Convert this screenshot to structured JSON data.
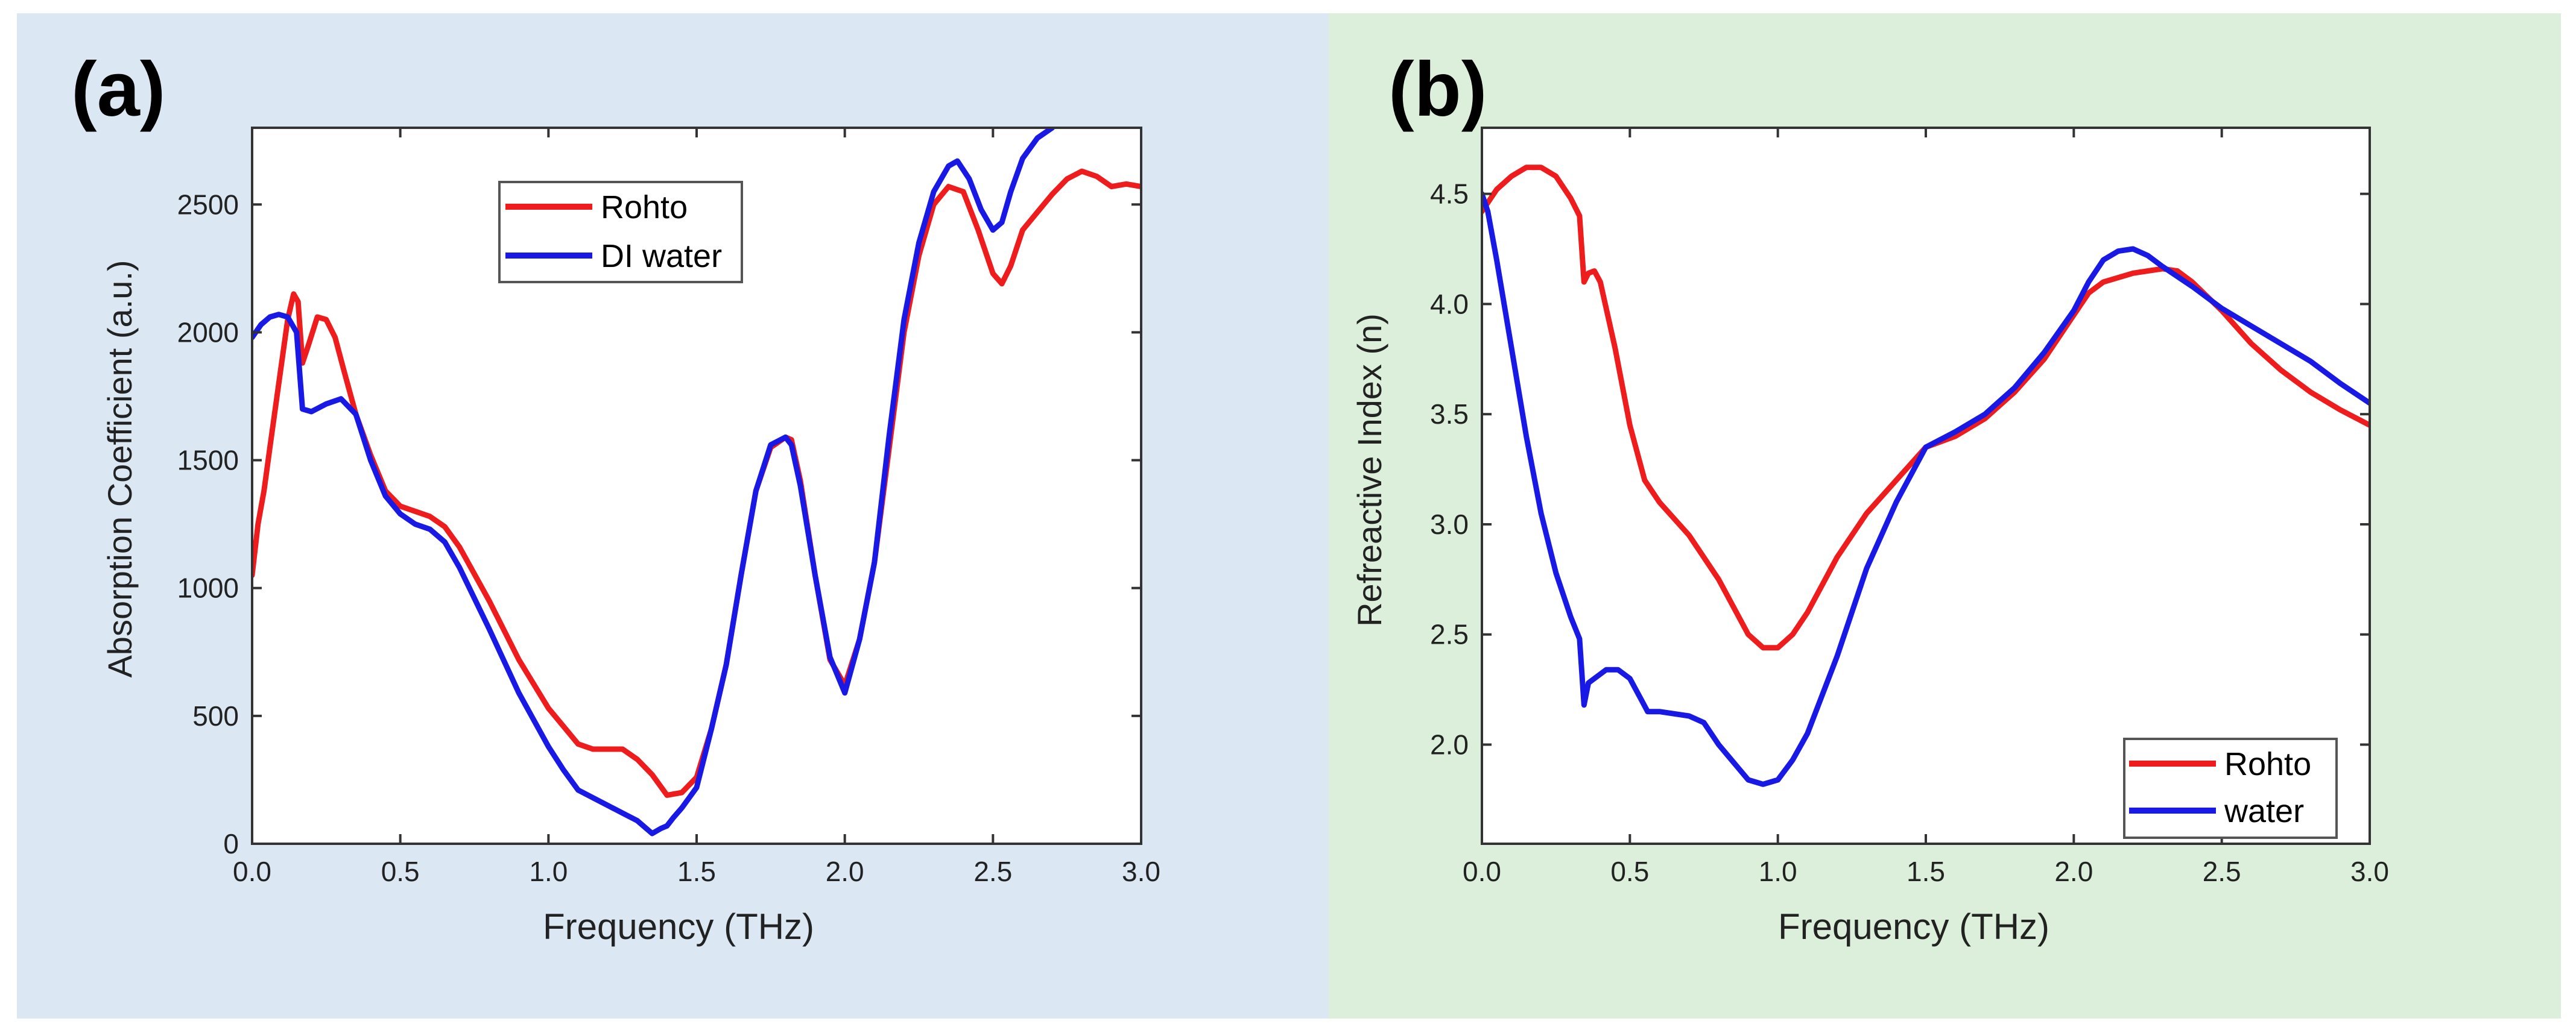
{
  "figure": {
    "panel_colors": [
      "#dbe8f4",
      "#dcefdb"
    ]
  },
  "chart_data": [
    {
      "type": "line",
      "panel_label": "(a)",
      "xlabel": "Frequency (THz)",
      "ylabel": "Absorption Coefficient (a.u.)",
      "xlim": [
        0.0,
        3.0
      ],
      "ylim": [
        0,
        2800
      ],
      "xticks": [
        0.0,
        0.5,
        1.0,
        1.5,
        2.0,
        2.5,
        3.0
      ],
      "xtick_labels": [
        "0.0",
        "0.5",
        "1.0",
        "1.5",
        "2.0",
        "2.5",
        "3.0"
      ],
      "yticks": [
        0,
        500,
        1000,
        1500,
        2000,
        2500
      ],
      "ytick_labels": [
        "0",
        "500",
        "1000",
        "1500",
        "2000",
        "2500"
      ],
      "grid": false,
      "legend_position": "top-center",
      "series": [
        {
          "name": "Rohto",
          "color": "#ee1c1c",
          "x": [
            0.0,
            0.02,
            0.04,
            0.06,
            0.09,
            0.12,
            0.14,
            0.155,
            0.17,
            0.19,
            0.22,
            0.25,
            0.28,
            0.31,
            0.35,
            0.4,
            0.45,
            0.5,
            0.55,
            0.6,
            0.65,
            0.7,
            0.8,
            0.9,
            1.0,
            1.05,
            1.1,
            1.15,
            1.2,
            1.25,
            1.3,
            1.35,
            1.4,
            1.45,
            1.5,
            1.55,
            1.6,
            1.65,
            1.7,
            1.75,
            1.8,
            1.82,
            1.85,
            1.9,
            1.95,
            2.0,
            2.05,
            2.1,
            2.15,
            2.2,
            2.25,
            2.3,
            2.35,
            2.4,
            2.45,
            2.5,
            2.53,
            2.56,
            2.6,
            2.65,
            2.7,
            2.75,
            2.8,
            2.85,
            2.9,
            2.95,
            3.0
          ],
          "y": [
            1050,
            1250,
            1380,
            1550,
            1800,
            2050,
            2150,
            2120,
            1880,
            1950,
            2060,
            2050,
            1980,
            1850,
            1680,
            1520,
            1380,
            1320,
            1300,
            1280,
            1240,
            1160,
            950,
            720,
            530,
            460,
            390,
            370,
            370,
            370,
            330,
            270,
            190,
            200,
            260,
            450,
            700,
            1050,
            1380,
            1550,
            1590,
            1580,
            1420,
            1050,
            720,
            620,
            800,
            1100,
            1550,
            2000,
            2300,
            2500,
            2570,
            2550,
            2400,
            2230,
            2190,
            2260,
            2400,
            2470,
            2540,
            2600,
            2630,
            2610,
            2570,
            2580,
            2570
          ]
        },
        {
          "name": "DI water",
          "color": "#1919e6",
          "x": [
            0.0,
            0.03,
            0.06,
            0.09,
            0.12,
            0.15,
            0.17,
            0.2,
            0.25,
            0.3,
            0.35,
            0.4,
            0.45,
            0.5,
            0.55,
            0.6,
            0.65,
            0.7,
            0.8,
            0.9,
            1.0,
            1.05,
            1.1,
            1.15,
            1.2,
            1.25,
            1.3,
            1.35,
            1.38,
            1.4,
            1.42,
            1.45,
            1.5,
            1.55,
            1.6,
            1.65,
            1.7,
            1.75,
            1.8,
            1.82,
            1.85,
            1.9,
            1.95,
            2.0,
            2.05,
            2.1,
            2.15,
            2.2,
            2.25,
            2.3,
            2.35,
            2.38,
            2.42,
            2.46,
            2.5,
            2.53,
            2.56,
            2.6,
            2.65,
            2.7
          ],
          "y": [
            1980,
            2030,
            2060,
            2070,
            2060,
            2000,
            1700,
            1690,
            1720,
            1740,
            1680,
            1500,
            1360,
            1290,
            1250,
            1230,
            1180,
            1080,
            840,
            590,
            380,
            290,
            210,
            180,
            150,
            120,
            90,
            40,
            60,
            70,
            100,
            140,
            220,
            450,
            700,
            1050,
            1380,
            1560,
            1590,
            1560,
            1400,
            1050,
            730,
            590,
            800,
            1100,
            1600,
            2050,
            2350,
            2550,
            2650,
            2670,
            2600,
            2480,
            2400,
            2430,
            2550,
            2680,
            2760,
            2800
          ]
        }
      ]
    },
    {
      "type": "line",
      "panel_label": "(b)",
      "xlabel": "Frequency (THz)",
      "ylabel": "Refreactive Index (n)",
      "xlim": [
        0.0,
        3.0
      ],
      "ylim": [
        1.55,
        4.8
      ],
      "xticks": [
        0.0,
        0.5,
        1.0,
        1.5,
        2.0,
        2.5,
        3.0
      ],
      "xtick_labels": [
        "0.0",
        "0.5",
        "1.0",
        "1.5",
        "2.0",
        "2.5",
        "3.0"
      ],
      "yticks": [
        2.0,
        2.5,
        3.0,
        3.5,
        4.0,
        4.5
      ],
      "ytick_labels": [
        "2.0",
        "2.5",
        "3.0",
        "3.5",
        "4.0",
        "4.5"
      ],
      "grid": false,
      "legend_position": "bottom-right",
      "series": [
        {
          "name": "Rohto",
          "color": "#ee1c1c",
          "x": [
            0.0,
            0.05,
            0.1,
            0.15,
            0.2,
            0.25,
            0.3,
            0.33,
            0.345,
            0.36,
            0.38,
            0.4,
            0.45,
            0.5,
            0.55,
            0.6,
            0.7,
            0.8,
            0.9,
            0.95,
            1.0,
            1.05,
            1.1,
            1.2,
            1.3,
            1.4,
            1.5,
            1.6,
            1.7,
            1.8,
            1.9,
            2.0,
            2.05,
            2.1,
            2.2,
            2.3,
            2.35,
            2.4,
            2.5,
            2.6,
            2.7,
            2.8,
            2.9,
            3.0
          ],
          "y": [
            4.42,
            4.52,
            4.58,
            4.62,
            4.62,
            4.58,
            4.48,
            4.4,
            4.1,
            4.14,
            4.15,
            4.1,
            3.8,
            3.45,
            3.2,
            3.1,
            2.95,
            2.75,
            2.5,
            2.44,
            2.44,
            2.5,
            2.6,
            2.85,
            3.05,
            3.2,
            3.35,
            3.4,
            3.48,
            3.6,
            3.75,
            3.95,
            4.05,
            4.1,
            4.14,
            4.16,
            4.15,
            4.1,
            3.97,
            3.82,
            3.7,
            3.6,
            3.52,
            3.45
          ]
        },
        {
          "name": "water",
          "color": "#1919e6",
          "x": [
            0.0,
            0.02,
            0.05,
            0.1,
            0.15,
            0.2,
            0.25,
            0.3,
            0.33,
            0.345,
            0.36,
            0.38,
            0.42,
            0.46,
            0.5,
            0.54,
            0.56,
            0.6,
            0.7,
            0.75,
            0.8,
            0.85,
            0.9,
            0.95,
            1.0,
            1.05,
            1.1,
            1.2,
            1.3,
            1.4,
            1.5,
            1.6,
            1.7,
            1.8,
            1.9,
            2.0,
            2.05,
            2.1,
            2.15,
            2.2,
            2.25,
            2.3,
            2.4,
            2.5,
            2.6,
            2.7,
            2.8,
            2.9,
            3.0
          ],
          "y": [
            4.5,
            4.42,
            4.2,
            3.8,
            3.4,
            3.05,
            2.78,
            2.58,
            2.48,
            2.18,
            2.28,
            2.3,
            2.34,
            2.34,
            2.3,
            2.2,
            2.15,
            2.15,
            2.13,
            2.1,
            2.0,
            1.92,
            1.84,
            1.82,
            1.84,
            1.93,
            2.05,
            2.4,
            2.8,
            3.1,
            3.35,
            3.42,
            3.5,
            3.62,
            3.78,
            3.97,
            4.1,
            4.2,
            4.24,
            4.25,
            4.22,
            4.17,
            4.08,
            3.98,
            3.9,
            3.82,
            3.74,
            3.64,
            3.55
          ]
        }
      ]
    }
  ]
}
